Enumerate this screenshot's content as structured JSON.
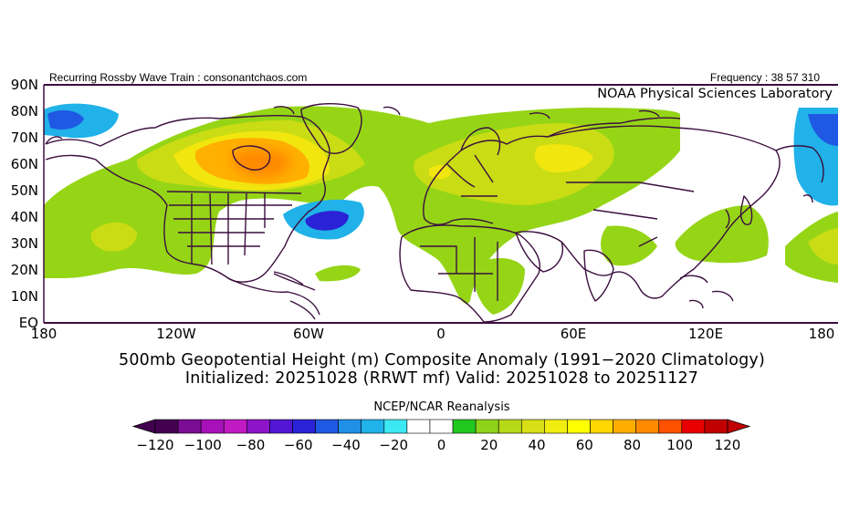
{
  "header": {
    "left_text": "Recurring Rossby Wave Train : consonantchaos.com",
    "right_text": "Frequency : 38 57 310",
    "lab": "NOAA Physical Sciences Laboratory"
  },
  "map": {
    "lat_labels": [
      "90N",
      "80N",
      "70N",
      "60N",
      "50N",
      "40N",
      "30N",
      "20N",
      "10N",
      "EQ"
    ],
    "lon_labels": [
      "180",
      "120W",
      "60W",
      "0",
      "60E",
      "120E",
      "180"
    ],
    "anomaly_regions": [
      {
        "name": "Central Canada / Hudson Bay ridge",
        "peak_m": 80
      },
      {
        "name": "Western Atlantic trough",
        "peak_m": -60
      },
      {
        "name": "Europe / Western Russia ridge",
        "peak_m": 50
      },
      {
        "name": "Central North Pacific ridge",
        "peak_m": 40
      },
      {
        "name": "East Asia / Japan ridge",
        "peak_m": 30
      },
      {
        "name": "Gulf of Alaska trough",
        "peak_m": -40
      },
      {
        "name": "Kamchatka / NW Pacific trough",
        "peak_m": -40
      }
    ]
  },
  "titles": {
    "line1": "500mb Geopotential Height (m) Composite Anomaly (1991−2020 Climatology)",
    "line2": "Initialized: 20251028 (RRWT mf) Valid: 20251028 to 20251127",
    "source": "NCEP/NCAR Reanalysis"
  },
  "colorbar": {
    "colors": [
      "#430050",
      "#7a0d93",
      "#a611b8",
      "#c01ac3",
      "#8d14c7",
      "#5316d4",
      "#2a22d6",
      "#1f58e3",
      "#1f90e6",
      "#20b2e8",
      "#3ce8f2",
      "#ffffff",
      "#ffffff",
      "#22c81f",
      "#8ed31a",
      "#b7d818",
      "#d9df16",
      "#f1ed10",
      "#fefe00",
      "#ffd700",
      "#ffae00",
      "#ff8a00",
      "#ff5200",
      "#e80000",
      "#c00000"
    ],
    "tick_labels": [
      "−120",
      "−100",
      "−80",
      "−60",
      "−40",
      "−20",
      "0",
      "20",
      "40",
      "60",
      "80",
      "100",
      "120"
    ]
  }
}
